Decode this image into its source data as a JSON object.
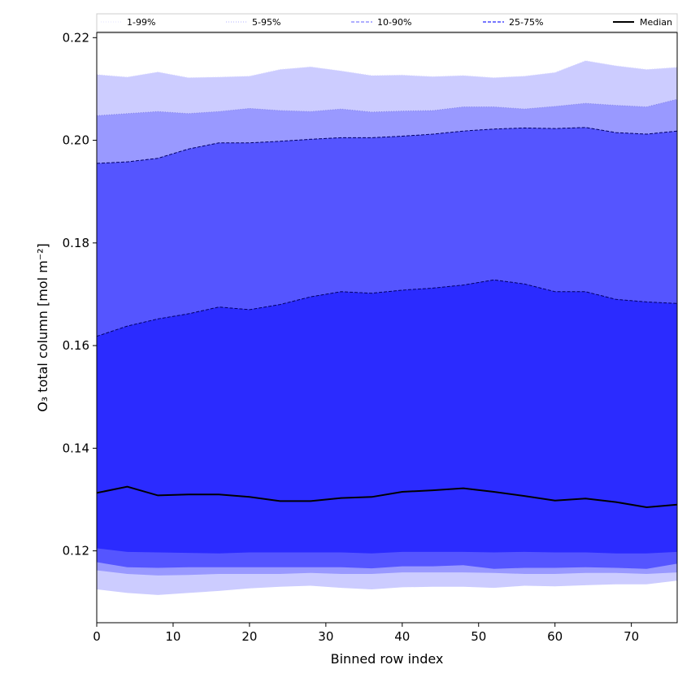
{
  "chart_data": {
    "type": "area",
    "xlabel": "Binned row index",
    "ylabel": "O₃ total column [mol m⁻²]",
    "xlim": [
      0,
      76
    ],
    "ylim": [
      0.106,
      0.221
    ],
    "x_ticks": [
      0,
      10,
      20,
      30,
      40,
      50,
      60,
      70
    ],
    "y_ticks": [
      0.12,
      0.14,
      0.16,
      0.18,
      0.2,
      0.22
    ],
    "y_tick_labels": [
      "0.12",
      "0.14",
      "0.16",
      "0.18",
      "0.20",
      "0.22"
    ],
    "grid": false,
    "legend_position": "top",
    "x": [
      0,
      4,
      8,
      12,
      16,
      20,
      24,
      28,
      32,
      36,
      40,
      44,
      48,
      52,
      56,
      60,
      64,
      68,
      72,
      76
    ],
    "bands": [
      {
        "name": "1-99%",
        "fill": "#ccccff",
        "line_style": "dotted",
        "lower": [
          0.1125,
          0.1118,
          0.1114,
          0.1118,
          0.1122,
          0.1127,
          0.113,
          0.1132,
          0.1128,
          0.1125,
          0.1129,
          0.113,
          0.113,
          0.1128,
          0.1132,
          0.1131,
          0.1133,
          0.1135,
          0.1135,
          0.1142
        ],
        "upper": [
          0.2128,
          0.2123,
          0.2133,
          0.2122,
          0.2123,
          0.2125,
          0.2138,
          0.2143,
          0.2135,
          0.2126,
          0.2127,
          0.2124,
          0.2126,
          0.2122,
          0.2125,
          0.2132,
          0.2155,
          0.2145,
          0.2138,
          0.2142
        ]
      },
      {
        "name": "5-95%",
        "fill": "#9999ff",
        "line_style": "dotted",
        "lower": [
          0.1162,
          0.1155,
          0.1152,
          0.1153,
          0.1155,
          0.1155,
          0.1155,
          0.1157,
          0.1155,
          0.1155,
          0.1158,
          0.1158,
          0.1158,
          0.1157,
          0.1155,
          0.1155,
          0.1157,
          0.1157,
          0.1155,
          0.1158
        ],
        "upper": [
          0.2048,
          0.2052,
          0.2056,
          0.2052,
          0.2056,
          0.2062,
          0.2058,
          0.2056,
          0.2061,
          0.2055,
          0.2057,
          0.2058,
          0.2065,
          0.2065,
          0.2061,
          0.2066,
          0.2072,
          0.2068,
          0.2065,
          0.208
        ]
      },
      {
        "name": "10-90%",
        "fill": "#5555ff",
        "line_style": "dashed",
        "lower": [
          0.1178,
          0.1168,
          0.1167,
          0.1168,
          0.1168,
          0.1168,
          0.1168,
          0.1168,
          0.1168,
          0.1166,
          0.117,
          0.117,
          0.1172,
          0.1165,
          0.1167,
          0.1167,
          0.1168,
          0.1167,
          0.1165,
          0.1175
        ],
        "upper": [
          0.1955,
          0.1958,
          0.1965,
          0.1983,
          0.1995,
          0.1995,
          0.1998,
          0.2002,
          0.2005,
          0.2005,
          0.2008,
          0.2012,
          0.2018,
          0.2022,
          0.2024,
          0.2023,
          0.2025,
          0.2015,
          0.2012,
          0.2018
        ]
      },
      {
        "name": "25-75%",
        "fill": "#2b2bff",
        "line_style": "dashed",
        "lower": [
          0.1205,
          0.1198,
          0.1197,
          0.1196,
          0.1195,
          0.1197,
          0.1197,
          0.1197,
          0.1197,
          0.1195,
          0.1198,
          0.1198,
          0.1198,
          0.1197,
          0.1198,
          0.1197,
          0.1197,
          0.1195,
          0.1195,
          0.1198
        ],
        "upper": [
          0.1618,
          0.1638,
          0.1652,
          0.1662,
          0.1675,
          0.167,
          0.168,
          0.1695,
          0.1705,
          0.1702,
          0.1708,
          0.1712,
          0.1718,
          0.1728,
          0.172,
          0.1705,
          0.1705,
          0.169,
          0.1685,
          0.1682
        ]
      }
    ],
    "series": [
      {
        "name": "Median",
        "color": "#000000",
        "values": [
          0.1313,
          0.1325,
          0.1308,
          0.131,
          0.131,
          0.1305,
          0.1297,
          0.1297,
          0.1303,
          0.1305,
          0.1315,
          0.1318,
          0.1322,
          0.1315,
          0.1307,
          0.1298,
          0.1302,
          0.1295,
          0.1285,
          0.129
        ]
      }
    ]
  }
}
